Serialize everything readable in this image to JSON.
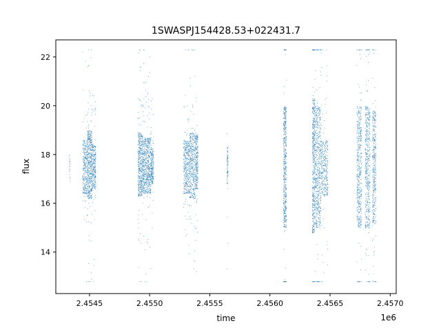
{
  "chart_data": {
    "type": "scatter",
    "title": "1SWASPJ154428.53+022431.7",
    "xlabel": "time",
    "ylabel": "flux",
    "x_offset_label": "1e6",
    "xlim": [
      2454220,
      2457050
    ],
    "ylim": [
      12.3,
      22.7
    ],
    "x_ticks": [
      2454500,
      2455000,
      2455500,
      2456000,
      2456500,
      2457000
    ],
    "x_tick_labels": [
      "2.4545",
      "2.4550",
      "2.4555",
      "2.4560",
      "2.4565",
      "2.4570"
    ],
    "y_ticks": [
      14,
      16,
      18,
      20,
      22
    ],
    "y_tick_labels": [
      "14",
      "16",
      "18",
      "20",
      "22"
    ],
    "grid": false,
    "marker_color": "#1f77b4",
    "clusters": [
      {
        "x": [
          2454330,
          2454335
        ],
        "y": [
          16.9,
          18.1
        ],
        "spread": 0.35,
        "density": 20
      },
      {
        "x": [
          2454440,
          2454480
        ],
        "y": [
          16.4,
          18.6
        ],
        "spread": 0.45,
        "density": 300
      },
      {
        "x": [
          2454480,
          2454520
        ],
        "y": [
          16.2,
          19.0
        ],
        "spread": 0.45,
        "density": 500
      },
      {
        "x": [
          2454520,
          2454550
        ],
        "y": [
          16.6,
          18.4
        ],
        "spread": 0.4,
        "density": 250
      },
      {
        "x": [
          2454900,
          2454940
        ],
        "y": [
          16.3,
          18.9
        ],
        "spread": 0.45,
        "density": 450
      },
      {
        "x": [
          2454940,
          2455010
        ],
        "y": [
          16.4,
          18.7
        ],
        "spread": 0.45,
        "density": 650
      },
      {
        "x": [
          2455010,
          2455030
        ],
        "y": [
          16.8,
          18.3
        ],
        "spread": 0.4,
        "density": 180
      },
      {
        "x": [
          2455280,
          2455330
        ],
        "y": [
          16.4,
          18.6
        ],
        "spread": 0.45,
        "density": 380
      },
      {
        "x": [
          2455330,
          2455380
        ],
        "y": [
          16.2,
          18.9
        ],
        "spread": 0.5,
        "density": 420
      },
      {
        "x": [
          2455380,
          2455400
        ],
        "y": [
          16.6,
          18.8
        ],
        "spread": 0.45,
        "density": 220
      },
      {
        "x": [
          2455640,
          2455650
        ],
        "y": [
          16.8,
          18.4
        ],
        "spread": 0.35,
        "density": 80
      },
      {
        "x": [
          2456110,
          2456135
        ],
        "y": [
          15.0,
          20.0
        ],
        "spread": 1.1,
        "density": 550
      },
      {
        "x": [
          2456350,
          2456370
        ],
        "y": [
          14.8,
          20.3
        ],
        "spread": 1.2,
        "density": 450
      },
      {
        "x": [
          2456370,
          2456420
        ],
        "y": [
          15.0,
          20.0
        ],
        "spread": 1.0,
        "density": 600
      },
      {
        "x": [
          2456420,
          2456480
        ],
        "y": [
          16.3,
          18.6
        ],
        "spread": 0.4,
        "density": 350
      },
      {
        "x": [
          2456720,
          2456760
        ],
        "y": [
          15.0,
          20.0
        ],
        "spread": 1.1,
        "density": 500
      },
      {
        "x": [
          2456790,
          2456830
        ],
        "y": [
          15.0,
          20.0
        ],
        "spread": 1.1,
        "density": 500
      },
      {
        "x": [
          2456850,
          2456880
        ],
        "y": [
          15.2,
          19.8
        ],
        "spread": 1.0,
        "density": 400
      }
    ]
  }
}
